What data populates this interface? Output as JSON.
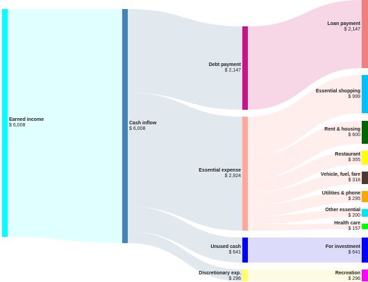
{
  "chart_data": {
    "type": "sankey",
    "currency": "$",
    "nodes": [
      {
        "id": "earned",
        "name": "Earned income",
        "value": "6,008",
        "color": "#00ffff"
      },
      {
        "id": "inflow",
        "name": "Cash inflow",
        "value": "6,008",
        "color": "#4682b4"
      },
      {
        "id": "debt",
        "name": "Debt payment",
        "value": "2,147",
        "color": "#c71585"
      },
      {
        "id": "essential",
        "name": "Essential expense",
        "value": "2,924",
        "color": "#ffa8a0"
      },
      {
        "id": "unused",
        "name": "Unused cash",
        "value": "641",
        "color": "#0000ff"
      },
      {
        "id": "discretionary",
        "name": "Discretionary exp.",
        "value": "296",
        "color": "#ffff66"
      },
      {
        "id": "loan",
        "name": "Loan payment",
        "value": "2,147",
        "color": "#f08080"
      },
      {
        "id": "shopping",
        "name": "Essential shopping",
        "value": "999",
        "color": "#00bfff"
      },
      {
        "id": "rent",
        "name": "Rent & housing",
        "value": "600",
        "color": "#006400"
      },
      {
        "id": "restaurant",
        "name": "Restaurant",
        "value": "355",
        "color": "#ffff00"
      },
      {
        "id": "vehicle",
        "name": "Vehicle, fuel, fare",
        "value": "318",
        "color": "#4d3b2f"
      },
      {
        "id": "utilities",
        "name": "Utilities & phone",
        "value": "295",
        "color": "#ffa500"
      },
      {
        "id": "other",
        "name": "Other essential",
        "value": "200",
        "color": "#00e5ee"
      },
      {
        "id": "health",
        "name": "Health care",
        "value": "157",
        "color": "#00ff00"
      },
      {
        "id": "investment",
        "name": "For investment",
        "value": "641",
        "color": "#0000ff"
      },
      {
        "id": "recreation",
        "name": "Recreation",
        "value": "296",
        "color": "#ff00ff"
      }
    ],
    "links": [
      {
        "source": "earned",
        "target": "inflow",
        "value": 6008,
        "color": "#e0ffff"
      },
      {
        "source": "inflow",
        "target": "debt",
        "value": 2147,
        "color": "#e1e8ee"
      },
      {
        "source": "inflow",
        "target": "essential",
        "value": 2924,
        "color": "#e1e8ee"
      },
      {
        "source": "inflow",
        "target": "unused",
        "value": 641,
        "color": "#e1e8ee"
      },
      {
        "source": "inflow",
        "target": "discretionary",
        "value": 296,
        "color": "#e1e8ee"
      },
      {
        "source": "debt",
        "target": "loan",
        "value": 2147,
        "color": "#f7d6e6"
      },
      {
        "source": "essential",
        "target": "shopping",
        "value": 999,
        "color": "#ffeeec"
      },
      {
        "source": "essential",
        "target": "rent",
        "value": 600,
        "color": "#ffeeec"
      },
      {
        "source": "essential",
        "target": "restaurant",
        "value": 355,
        "color": "#ffeeec"
      },
      {
        "source": "essential",
        "target": "vehicle",
        "value": 318,
        "color": "#ffeeec"
      },
      {
        "source": "essential",
        "target": "utilities",
        "value": 295,
        "color": "#ffeeec"
      },
      {
        "source": "essential",
        "target": "other",
        "value": 200,
        "color": "#ffeeec"
      },
      {
        "source": "essential",
        "target": "health",
        "value": 157,
        "color": "#ffeeec"
      },
      {
        "source": "unused",
        "target": "investment",
        "value": 641,
        "color": "#dcdcfa"
      },
      {
        "source": "discretionary",
        "target": "recreation",
        "value": 296,
        "color": "#fffbe0"
      }
    ]
  }
}
